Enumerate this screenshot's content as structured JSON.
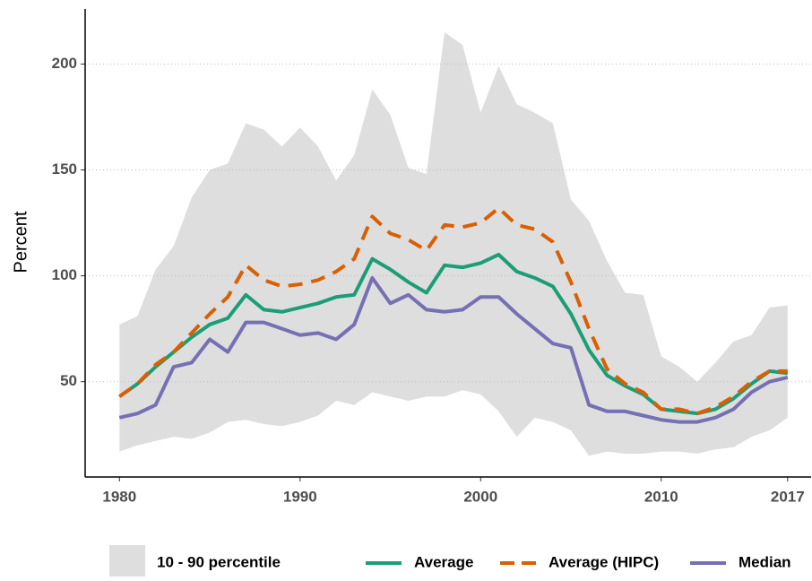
{
  "chart_data": {
    "type": "line",
    "ylabel": "Percent",
    "x": [
      1980,
      1981,
      1982,
      1983,
      1984,
      1985,
      1986,
      1987,
      1988,
      1989,
      1990,
      1991,
      1992,
      1993,
      1994,
      1995,
      1996,
      1997,
      1998,
      1999,
      2000,
      2001,
      2002,
      2003,
      2004,
      2005,
      2006,
      2007,
      2008,
      2009,
      2010,
      2011,
      2012,
      2013,
      2014,
      2015,
      2016,
      2017
    ],
    "band": {
      "name": "10 - 90 percentile",
      "color": "#dedede",
      "upper": [
        77,
        81,
        103,
        114,
        137,
        150,
        153,
        172,
        169,
        161,
        170,
        161,
        145,
        157,
        188,
        176,
        151,
        148,
        215,
        209,
        177,
        199,
        181,
        177,
        172,
        136,
        126,
        107,
        92,
        91,
        62,
        57,
        50,
        59,
        69,
        72,
        85,
        86
      ],
      "lower": [
        17,
        20,
        22,
        24,
        23,
        26,
        31,
        32,
        30,
        29,
        31,
        34,
        41,
        39,
        45,
        43,
        41,
        43,
        43,
        46,
        44,
        36,
        24,
        33,
        31,
        27,
        15,
        17,
        16,
        16,
        17,
        17,
        16,
        18,
        19,
        24,
        27,
        33
      ]
    },
    "series": [
      {
        "name": "Average",
        "color": "#1b9e77",
        "dashed": false,
        "values": [
          43,
          49,
          57,
          64,
          71,
          77,
          80,
          91,
          84,
          83,
          85,
          87,
          90,
          91,
          108,
          103,
          97,
          92,
          105,
          104,
          106,
          110,
          102,
          99,
          95,
          82,
          65,
          53,
          48,
          44,
          37,
          36,
          35,
          37,
          42,
          49,
          55,
          54
        ]
      },
      {
        "name": "Average (HIPC)",
        "color": "#d95f02",
        "dashed": true,
        "values": [
          43,
          49,
          58,
          64,
          73,
          82,
          90,
          105,
          98,
          95,
          96,
          98,
          102,
          108,
          128,
          120,
          117,
          112,
          124,
          123,
          125,
          132,
          124,
          122,
          116,
          97,
          75,
          56,
          49,
          45,
          37,
          37,
          35,
          38,
          43,
          50,
          55,
          55
        ]
      },
      {
        "name": "Median",
        "color": "#7570b3",
        "dashed": false,
        "values": [
          33,
          35,
          39,
          57,
          59,
          70,
          64,
          78,
          78,
          75,
          72,
          73,
          70,
          77,
          99,
          87,
          91,
          84,
          83,
          84,
          90,
          90,
          82,
          75,
          68,
          66,
          39,
          36,
          36,
          34,
          32,
          31,
          31,
          33,
          37,
          45,
          50,
          52
        ]
      }
    ],
    "xlim": [
      1978.1,
      2018.3
    ],
    "xticks": [
      1980,
      1990,
      2000,
      2010,
      2017
    ],
    "ylim": [
      5,
      226
    ],
    "yticks": [
      50,
      100,
      150,
      200
    ],
    "grid": true,
    "legend": "bottom"
  }
}
